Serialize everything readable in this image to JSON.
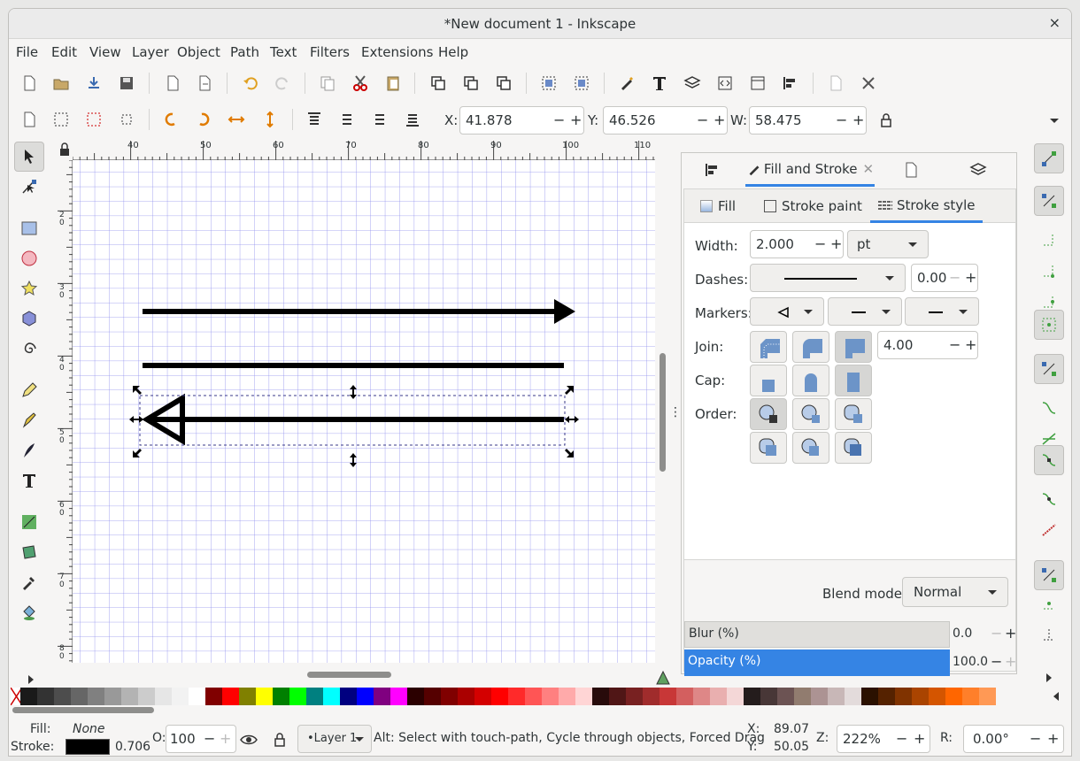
{
  "window": {
    "title": "*New document 1 - Inkscape",
    "close": "×"
  },
  "menu": [
    "File",
    "Edit",
    "View",
    "Layer",
    "Object",
    "Path",
    "Text",
    "Filters",
    "Extensions",
    "Help"
  ],
  "toolctrl": {
    "x_label": "X:",
    "x": "41.878",
    "y_label": "Y:",
    "y": "46.526",
    "w_label": "W:",
    "w": "58.475",
    "minus": "−",
    "plus": "+"
  },
  "ruler": {
    "h": [
      "40",
      "50",
      "60",
      "70",
      "80",
      "90",
      "100",
      "110"
    ],
    "v": [
      "2 0",
      "3 0",
      "4 0",
      "5 0",
      "6 0",
      "7 0",
      "8 0"
    ]
  },
  "panel": {
    "tab_label": "Fill and Stroke",
    "tab_close": "✕",
    "sub_fill": "Fill",
    "sub_stroke_paint": "Stroke paint",
    "sub_stroke_style": "Stroke style",
    "width_label": "Width:",
    "width": "2.000",
    "unit": "pt",
    "dashes_label": "Dashes:",
    "dash_offset": "0.00",
    "markers_label": "Markers:",
    "join_label": "Join:",
    "miter": "4.00",
    "cap_label": "Cap:",
    "order_label": "Order:",
    "blend_label": "Blend mode:",
    "blend": "Normal",
    "blur_label": "Blur (%)",
    "blur": "0.0",
    "opacity_label": "Opacity (%)",
    "opacity": "100.0"
  },
  "status": {
    "fill_label": "Fill:",
    "fill": "None",
    "stroke_label": "Stroke:",
    "stroke_width": "0.706",
    "o_label": "O:",
    "o": "100",
    "layer": "•Layer 1",
    "message": "Alt: Select with touch-path, Cycle through objects, Forced Drag",
    "x_label": "X:",
    "x": "89.07",
    "y_label": "Y:",
    "y": "50.05",
    "z_label": "Z:",
    "zoom": "222%",
    "r_label": "R:",
    "rot": "0.00°"
  },
  "colors": {
    "accent": "#3584e4",
    "grid": "#8c8cf0"
  },
  "palette": [
    "#1a1a1a",
    "#333",
    "#4d4d4d",
    "#666",
    "#808080",
    "#999",
    "#b3b3b3",
    "#ccc",
    "#e6e6e6",
    "#f2f2f2",
    "#fff",
    "#800000",
    "#ff0000",
    "#808000",
    "#ffff00",
    "#008000",
    "#00ff00",
    "#008080",
    "#00ffff",
    "#000080",
    "#0000ff",
    "#800080",
    "#ff00ff",
    "#2b0000",
    "#550000",
    "#800000",
    "#aa0000",
    "#d40000",
    "#ff0000",
    "#ff2a2a",
    "#ff5555",
    "#ff8080",
    "#ffaaaa",
    "#ffd5d5",
    "#280b0b",
    "#501616",
    "#782121",
    "#a02c2c",
    "#c83737",
    "#d35f5f",
    "#de8787",
    "#e9afaf",
    "#f4d7d7",
    "#241c1c",
    "#483737",
    "#6c5353",
    "#917c6f",
    "#ac9393",
    "#c8b7b7",
    "#e3dbdb",
    "#2b1100",
    "#552200",
    "#803300",
    "#aa4400",
    "#d45500",
    "#ff6600",
    "#ff7f2a",
    "#ff9955"
  ]
}
